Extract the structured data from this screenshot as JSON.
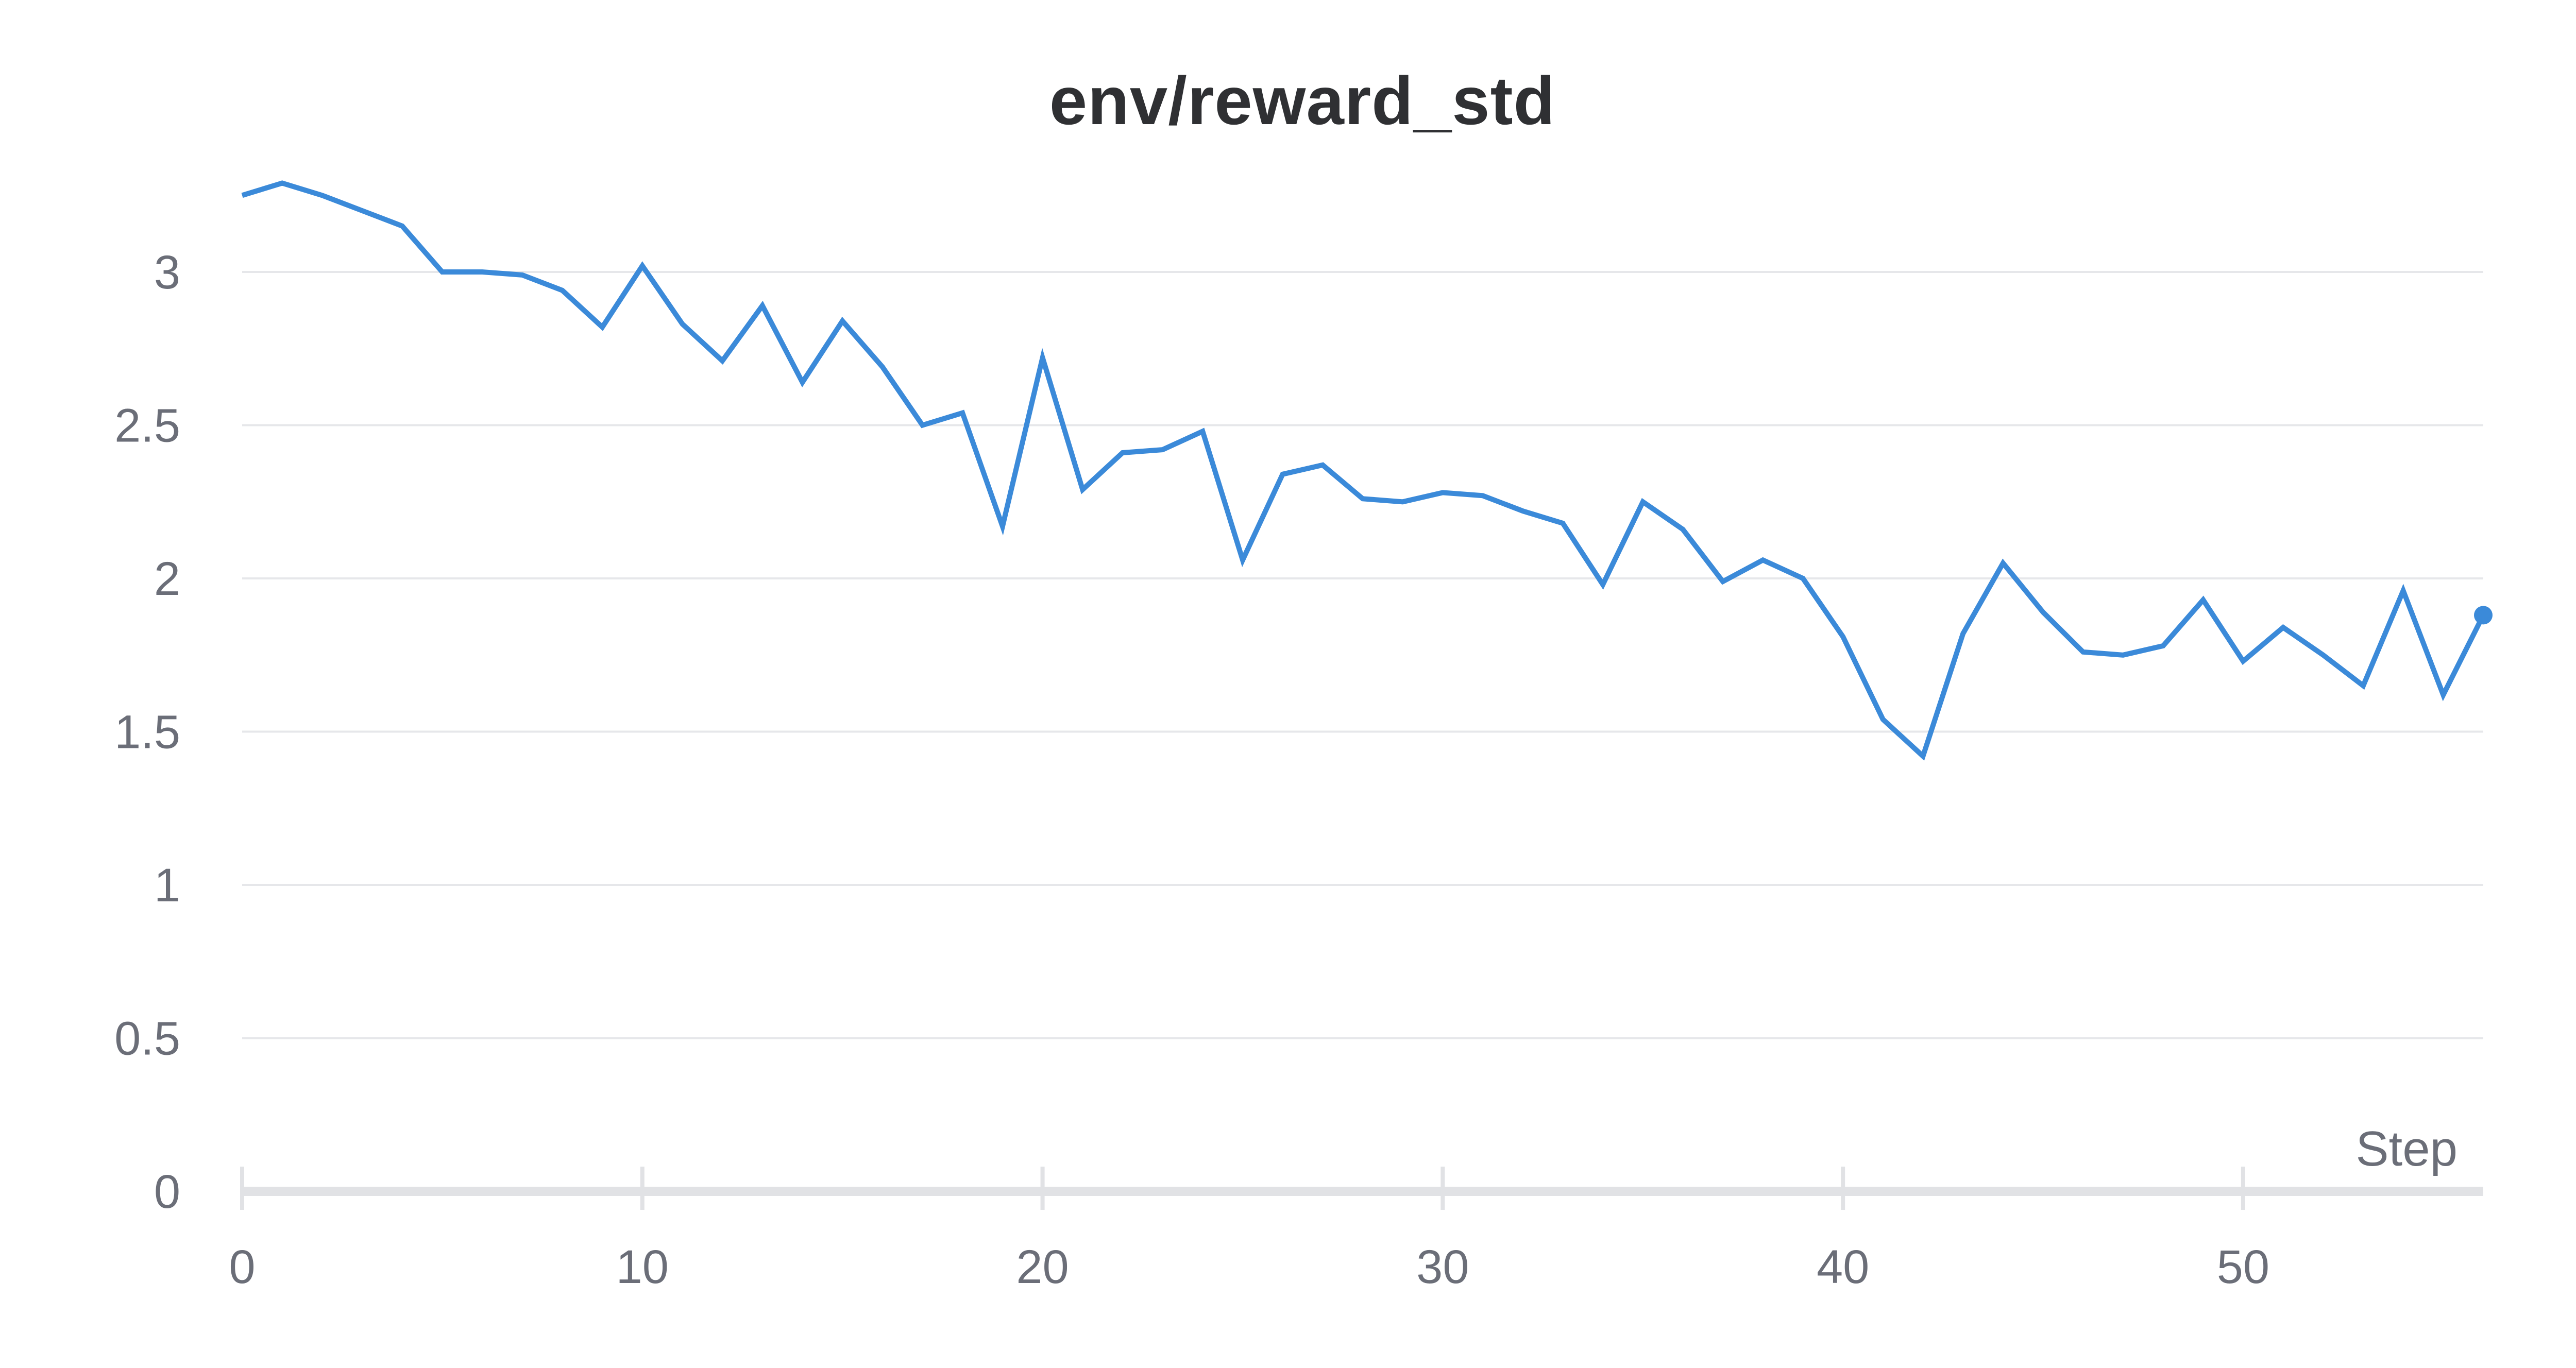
{
  "chart_data": {
    "type": "line",
    "title": "env/reward_std",
    "xlabel": "Step",
    "ylabel": "",
    "xlim": [
      0,
      56
    ],
    "ylim": [
      0,
      3.4
    ],
    "xticks": [
      "0",
      "10",
      "20",
      "30",
      "40",
      "50"
    ],
    "yticks": [
      "0",
      "0.5",
      "1",
      "1.5",
      "2",
      "2.5",
      "3"
    ],
    "grid": true,
    "line_color": "#3b8ad9",
    "series": [
      {
        "x": [
          0,
          1,
          2,
          3,
          4,
          5,
          6,
          7,
          8,
          9,
          10,
          11,
          12,
          13,
          14,
          15,
          16,
          17,
          18,
          19,
          20,
          21,
          22,
          23,
          24,
          25,
          26,
          27,
          28,
          29,
          30,
          31,
          32,
          33,
          34,
          35,
          36,
          37,
          38,
          39,
          40,
          41,
          42,
          43,
          44,
          45,
          46,
          47,
          48,
          49,
          50,
          51,
          52,
          53,
          54,
          55,
          56
        ],
        "values": [
          3.25,
          3.29,
          3.25,
          3.2,
          3.15,
          3.0,
          3.0,
          2.99,
          2.94,
          2.82,
          3.02,
          2.83,
          2.71,
          2.89,
          2.64,
          2.84,
          2.69,
          2.5,
          2.54,
          2.17,
          2.72,
          2.29,
          2.41,
          2.42,
          2.48,
          2.06,
          2.34,
          2.37,
          2.26,
          2.25,
          2.28,
          2.27,
          2.22,
          2.18,
          1.98,
          2.25,
          2.16,
          1.99,
          2.06,
          2.0,
          1.81,
          1.54,
          1.42,
          1.82,
          2.05,
          1.89,
          1.76,
          1.75,
          1.78,
          1.93,
          1.73,
          1.84,
          1.75,
          1.65,
          1.96,
          1.62,
          1.88
        ]
      }
    ]
  }
}
